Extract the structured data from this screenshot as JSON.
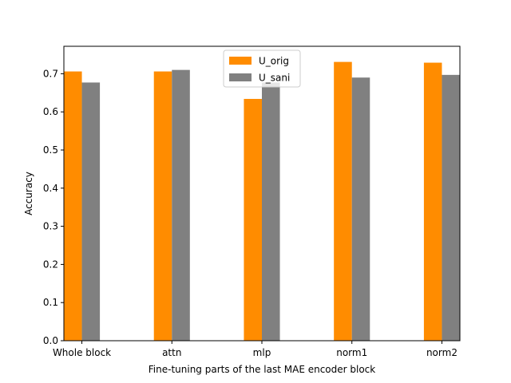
{
  "chart_data": {
    "type": "bar",
    "title": "",
    "xlabel": "Fine-tuning parts of the last MAE encoder block",
    "ylabel": "Accuracy",
    "categories": [
      "Whole block",
      "attn",
      "mlp",
      "norm1",
      "norm2"
    ],
    "series": [
      {
        "name": "U_orig",
        "color": "#ff8c00",
        "values": [
          0.706,
          0.706,
          0.634,
          0.731,
          0.729
        ]
      },
      {
        "name": "U_sani",
        "color": "#808080",
        "values": [
          0.677,
          0.71,
          0.677,
          0.69,
          0.697
        ]
      }
    ],
    "ylim": [
      0,
      0.772
    ],
    "yticks": [
      0.0,
      0.1,
      0.2,
      0.3,
      0.4,
      0.5,
      0.6,
      0.7
    ],
    "ytick_labels": [
      "0.0",
      "0.1",
      "0.2",
      "0.3",
      "0.4",
      "0.5",
      "0.6",
      "0.7"
    ],
    "grid": false,
    "legend_position": "top-center"
  }
}
